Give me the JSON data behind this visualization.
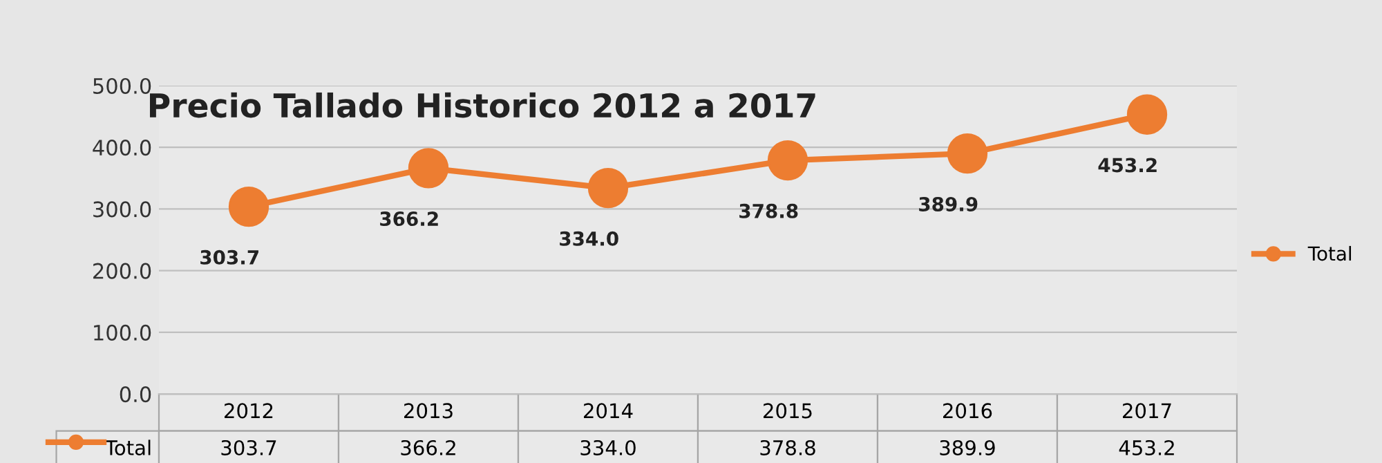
{
  "chart_data": {
    "type": "line",
    "title": "Precio Tallado Historico 2012 a 2017",
    "categories": [
      "2012",
      "2013",
      "2014",
      "2015",
      "2016",
      "2017"
    ],
    "series": [
      {
        "name": "Total",
        "color": "#ed7d31",
        "values": [
          303.7,
          366.2,
          334.0,
          378.8,
          389.9,
          453.2
        ],
        "value_labels": [
          "303.7",
          "366.2",
          "334.0",
          "378.8",
          "389.9",
          "453.2"
        ]
      }
    ],
    "ylim": [
      0,
      500
    ],
    "yticks": [
      {
        "value": 0,
        "label": "0.0"
      },
      {
        "value": 100,
        "label": "100.0"
      },
      {
        "value": 200,
        "label": "200.0"
      },
      {
        "value": 300,
        "label": "300.0"
      },
      {
        "value": 400,
        "label": "400.0"
      },
      {
        "value": 500,
        "label": "500.0"
      }
    ],
    "grid": "y",
    "legend": "right",
    "marker": "circle",
    "line_style": "solid"
  }
}
